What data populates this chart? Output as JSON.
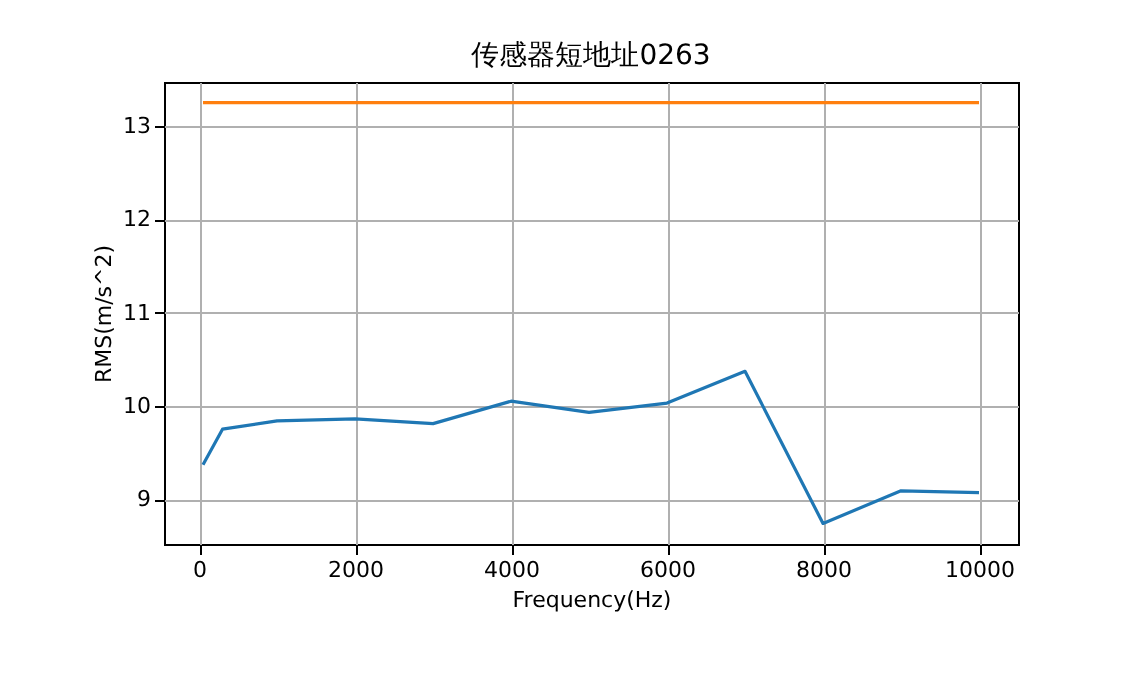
{
  "chart_data": {
    "type": "line",
    "title": "传感器短地址0263",
    "xlabel": "Frequency(Hz)",
    "ylabel": "RMS(m/s^2)",
    "x": [
      50,
      300,
      1000,
      2000,
      3000,
      4000,
      5000,
      6000,
      7000,
      8000,
      9000,
      10000
    ],
    "series": [
      {
        "color": "#1f77b4",
        "values": [
          9.37,
          9.75,
          9.84,
          9.86,
          9.81,
          10.05,
          9.93,
          10.03,
          10.37,
          8.74,
          9.09,
          9.07
        ]
      },
      {
        "color": "#ff7f0e",
        "x": [
          50,
          10000
        ],
        "values": [
          13.25,
          13.25
        ]
      }
    ],
    "xlim": [
      -450,
      10500
    ],
    "ylim": [
      8.52,
      13.47
    ],
    "xticks": [
      0,
      2000,
      4000,
      6000,
      8000,
      10000
    ],
    "yticks": [
      9,
      10,
      11,
      12,
      13
    ],
    "grid": true,
    "marker": "none",
    "line_style": "solid"
  }
}
